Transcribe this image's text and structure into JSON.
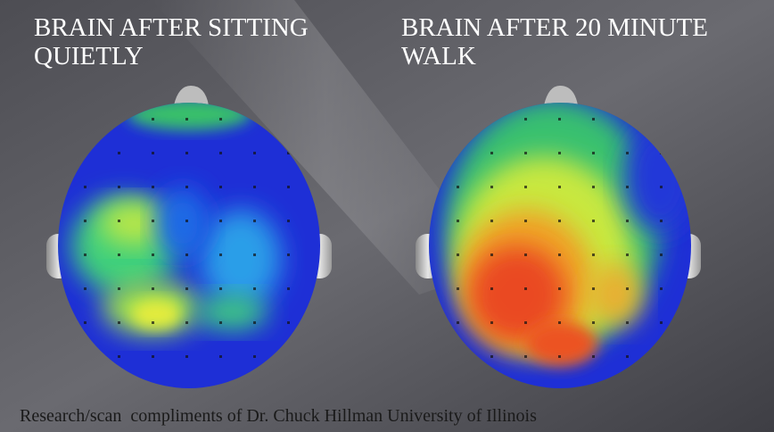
{
  "slide": {
    "left_title": [
      "BRAIN AFTER SITTING",
      "QUIETLY"
    ],
    "right_title": [
      "BRAIN AFTER 20 MINUTE",
      "WALK"
    ],
    "caption": "Research/scan  compliments of Dr. Chuck Hillman University of Illinois"
  }
}
